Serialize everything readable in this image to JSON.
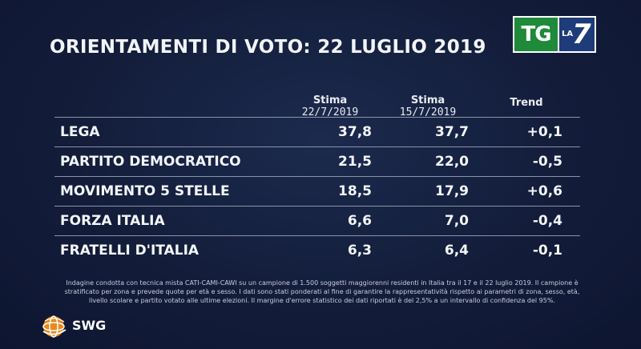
{
  "title": "ORIENTAMENTI DI VOTO: 22 LUGLIO 2019",
  "logo": {
    "tg": "TG",
    "la": "LA",
    "seven": "7"
  },
  "table": {
    "headers": [
      {
        "line1": "Stima",
        "line2": "22/7/2019"
      },
      {
        "line1": "Stima",
        "line2": "15/7/2019"
      },
      {
        "line1": "Trend",
        "line2": ""
      }
    ],
    "rows": [
      {
        "party": "LEGA",
        "est_22": "37,8",
        "est_15": "37,7",
        "trend": "+0,1"
      },
      {
        "party": "PARTITO DEMOCRATICO",
        "est_22": "21,5",
        "est_15": "22,0",
        "trend": "-0,5"
      },
      {
        "party": "MOVIMENTO 5 STELLE",
        "est_22": "18,5",
        "est_15": "17,9",
        "trend": "+0,6"
      },
      {
        "party": "FORZA ITALIA",
        "est_22": "6,6",
        "est_15": "7,0",
        "trend": "-0,4"
      },
      {
        "party": "FRATELLI D'ITALIA",
        "est_22": "6,3",
        "est_15": "6,4",
        "trend": "-0,1"
      }
    ]
  },
  "footnote": "Indagine condotta con tecnica mista CATI-CAMI-CAWI su un campione di 1.500 soggetti maggiorenni residenti in Italia tra il 17 e il 22 luglio 2019. Il campione è stratificato per zona e prevede quote per età e sesso. I dati sono stati ponderati al fine di garantire la rappresentatività rispetto ai parametri di zona, sesso, età, livello scolare e partito votato alle ultime elezioni. Il margine d'errore statistico dei dati riportati è del 2,5% a un intervallo di confidenza del 95%.",
  "swg": {
    "name": "SWG"
  },
  "colors": {
    "background": "#131d3a",
    "tg_green": "#1f8a3a",
    "la7_blue": "#1e3b7a",
    "swg_orange": "#e8891e"
  },
  "icons": {
    "logo": "tg-la7-logo",
    "swg": "swg-globe-logo"
  }
}
